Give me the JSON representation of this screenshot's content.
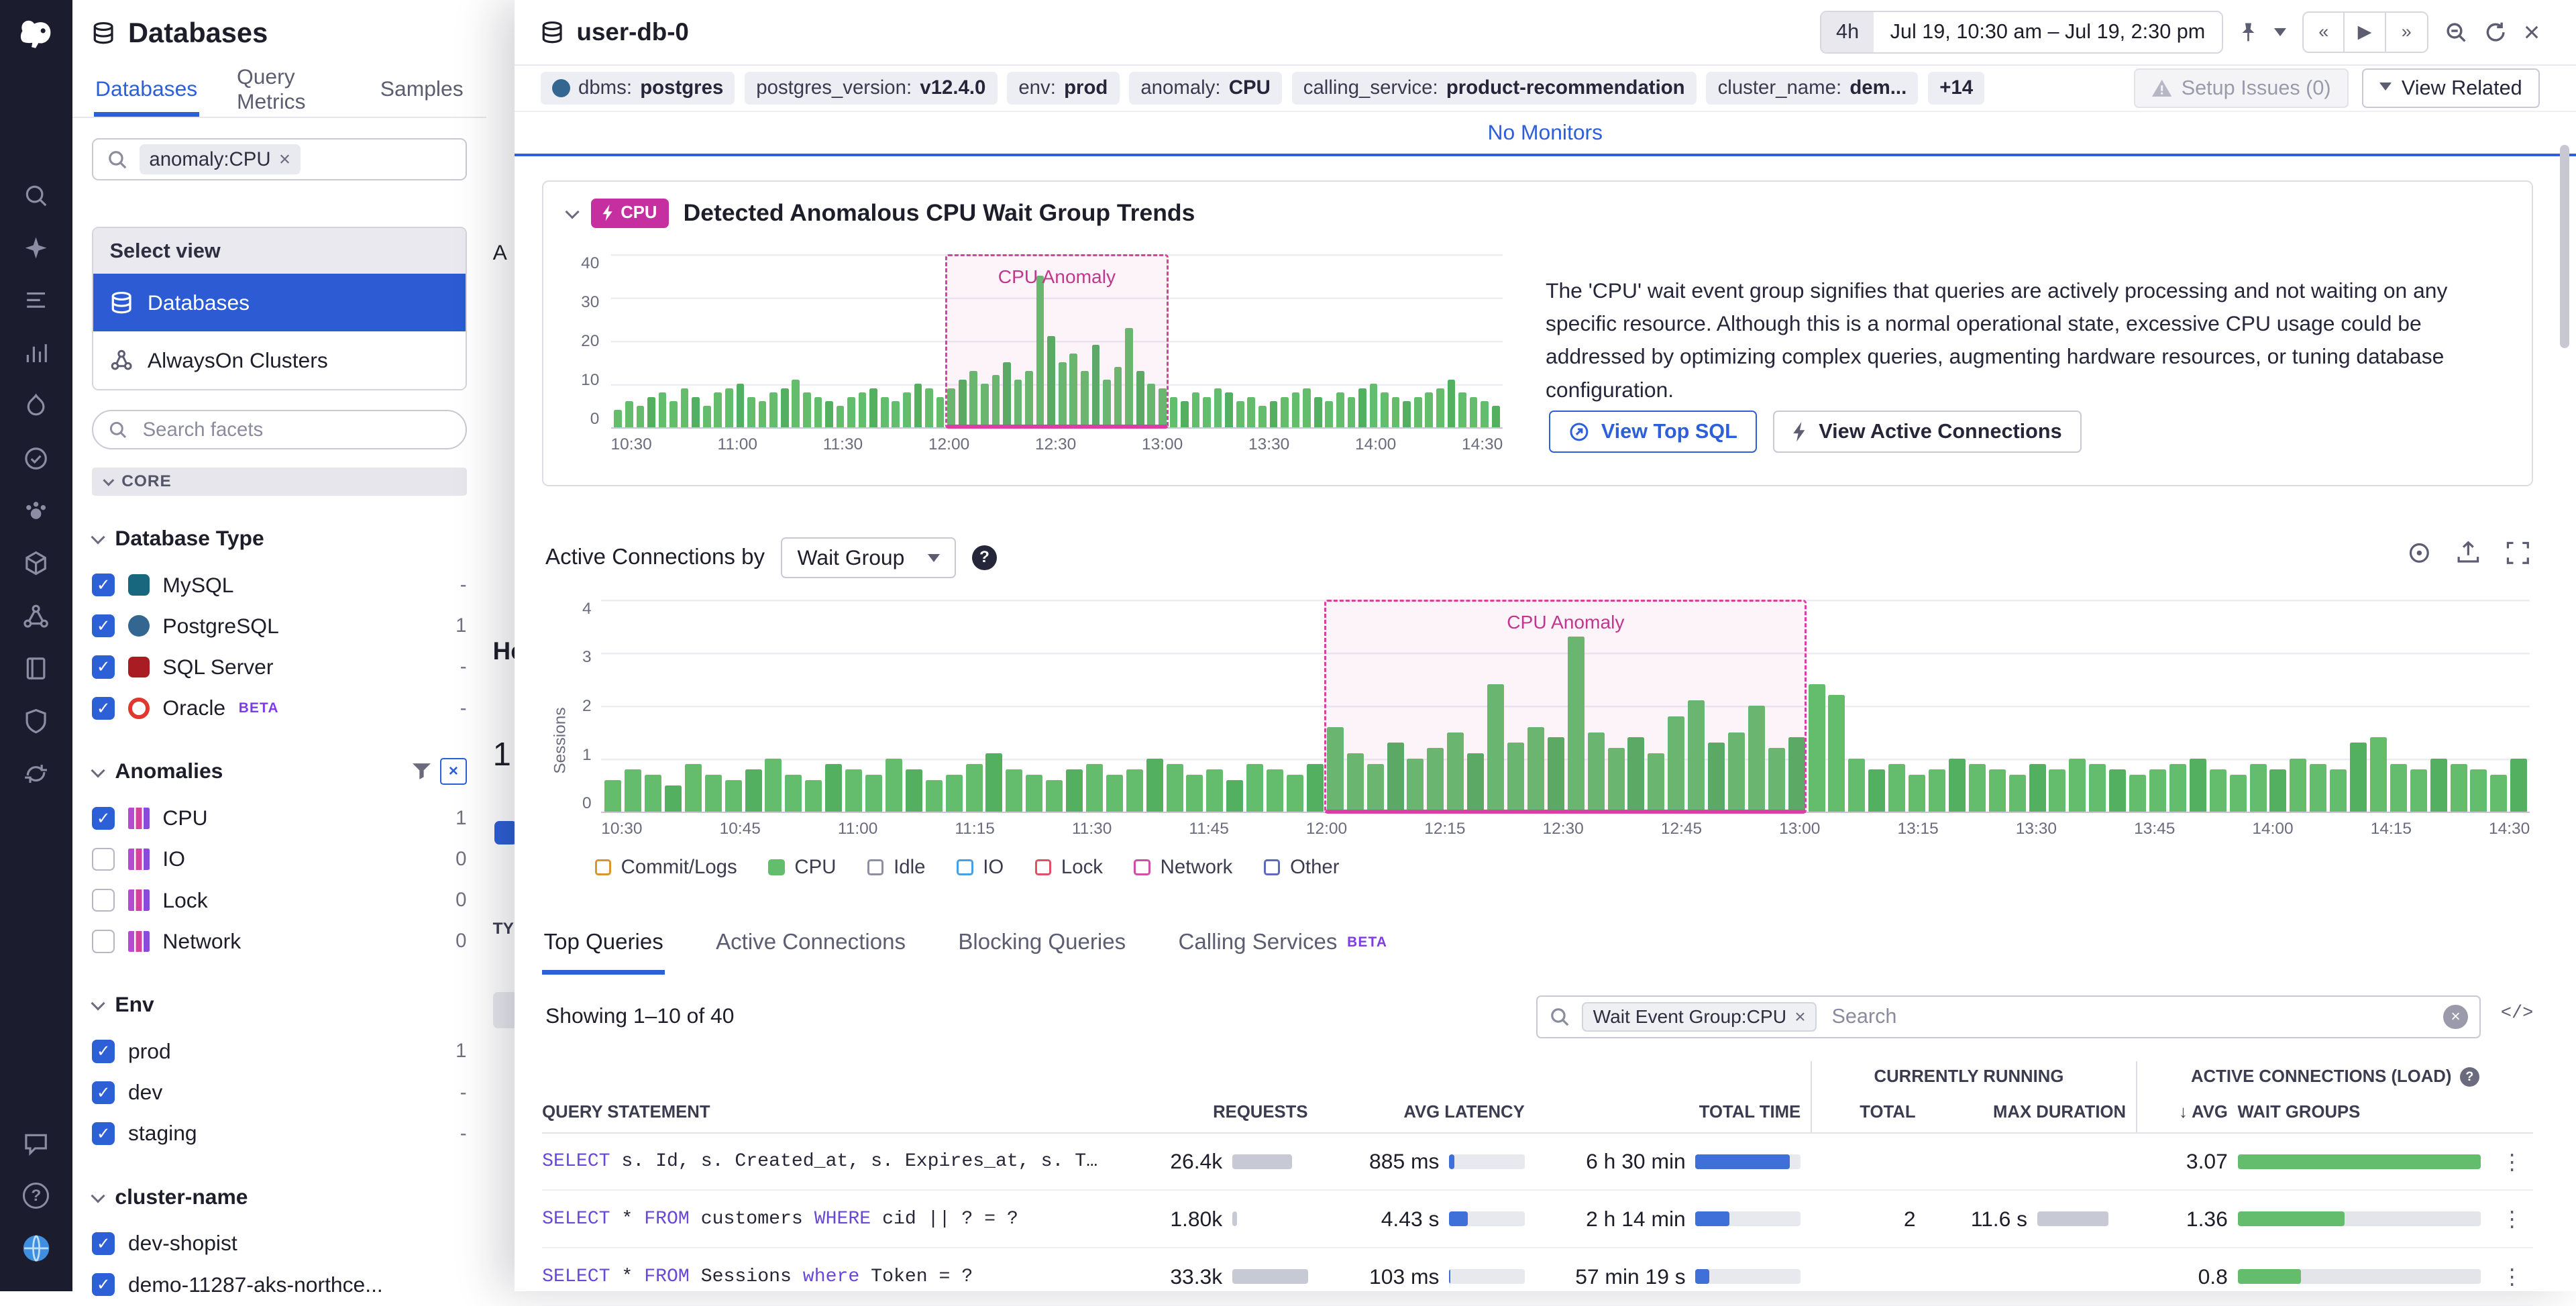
{
  "app": {
    "nav_icons": [
      "search",
      "bits-ai",
      "logs",
      "metrics",
      "apm",
      "monitors",
      "watchdog",
      "infrastructure",
      "network",
      "notebooks",
      "security",
      "integrations"
    ],
    "nav_bottom_icons": [
      "chat",
      "help",
      "region"
    ]
  },
  "left_panel": {
    "title": "Databases",
    "tabs": [
      {
        "label": "Databases",
        "active": true
      },
      {
        "label": "Query Metrics",
        "active": false
      },
      {
        "label": "Samples",
        "active": false
      }
    ],
    "search_chip": "anomaly:CPU",
    "select_view": {
      "header": "Select view",
      "items": [
        {
          "label": "Databases",
          "selected": true
        },
        {
          "label": "AlwaysOn Clusters",
          "selected": false
        }
      ]
    },
    "facet_search_placeholder": "Search facets",
    "core_label": "CORE",
    "facet_groups": [
      {
        "title": "Database Type",
        "filter": false,
        "items": [
          {
            "label": "MySQL",
            "icon": "mysql",
            "checked": true,
            "count": "-"
          },
          {
            "label": "PostgreSQL",
            "icon": "postgresql",
            "checked": true,
            "count": "1"
          },
          {
            "label": "SQL Server",
            "icon": "sqlserver",
            "checked": true,
            "count": "-"
          },
          {
            "label": "Oracle",
            "icon": "oracle",
            "checked": true,
            "count": "-",
            "beta": true
          }
        ]
      },
      {
        "title": "Anomalies",
        "filter": true,
        "items": [
          {
            "label": "CPU",
            "icon": "anomaly",
            "checked": true,
            "count": "1"
          },
          {
            "label": "IO",
            "icon": "anomaly",
            "checked": false,
            "count": "0"
          },
          {
            "label": "Lock",
            "icon": "anomaly",
            "checked": false,
            "count": "0"
          },
          {
            "label": "Network",
            "icon": "anomaly",
            "checked": false,
            "count": "0"
          }
        ]
      },
      {
        "title": "Env",
        "filter": false,
        "items": [
          {
            "label": "prod",
            "checked": true,
            "count": "1"
          },
          {
            "label": "dev",
            "checked": true,
            "count": "-"
          },
          {
            "label": "staging",
            "checked": true,
            "count": "-"
          }
        ]
      },
      {
        "title": "cluster-name",
        "filter": false,
        "items": [
          {
            "label": "dev-shopist",
            "checked": true,
            "count": ""
          },
          {
            "label": "demo-11287-aks-northce...",
            "checked": true,
            "count": ""
          }
        ]
      }
    ]
  },
  "background_fragments": {
    "top": "A",
    "heading": "He",
    "count": "1",
    "column": "TY"
  },
  "panel": {
    "title": "user-db-0",
    "time": {
      "range_chip": "4h",
      "range_text": "Jul 19, 10:30 am – Jul 19, 2:30 pm"
    },
    "tags": [
      {
        "label": "dbms",
        "value": "postgres",
        "icon": "postgres"
      },
      {
        "label": "postgres_version",
        "value": "v12.4.0"
      },
      {
        "label": "env",
        "value": "prod"
      },
      {
        "label": "anomaly",
        "value": "CPU"
      },
      {
        "label": "calling_service",
        "value": "product-recommendation"
      },
      {
        "label": "cluster_name",
        "value": "dem..."
      }
    ],
    "tags_more": "+14",
    "setup_issues_label": "Setup Issues (0)",
    "view_related_label": "View Related",
    "no_monitors_label": "No Monitors",
    "anomaly_card": {
      "badge": "CPU",
      "title": "Detected Anomalous CPU Wait Group Trends",
      "description": "The 'CPU' wait event group signifies that queries are actively processing and not waiting on any specific resource. Although this is a normal operational state, excessive CPU usage could be addressed by optimizing complex queries, augmenting hardware resources, or tuning database configuration.",
      "buttons": [
        {
          "label": "View Top SQL",
          "primary": true
        },
        {
          "label": "View Active Connections",
          "primary": false
        }
      ]
    },
    "active_connections": {
      "label": "Active Connections by",
      "dropdown_value": "Wait Group",
      "legend": [
        {
          "label": "Commit/Logs",
          "color": "#d9952f",
          "filled": false
        },
        {
          "label": "CPU",
          "color": "#63bd6c",
          "filled": true
        },
        {
          "label": "Idle",
          "color": "#8f8fa3",
          "filled": false
        },
        {
          "label": "IO",
          "color": "#4a9fe0",
          "filled": false
        },
        {
          "label": "Lock",
          "color": "#de5066",
          "filled": false
        },
        {
          "label": "Network",
          "color": "#cf4fa6",
          "filled": false
        },
        {
          "label": "Other",
          "color": "#5b6abf",
          "filled": false
        }
      ]
    },
    "tabs": [
      {
        "label": "Top Queries",
        "active": true
      },
      {
        "label": "Active Connections",
        "active": false
      },
      {
        "label": "Blocking Queries",
        "active": false
      },
      {
        "label": "Calling Services",
        "active": false,
        "beta": true
      }
    ],
    "table": {
      "showing": "Showing 1–10 of 40",
      "search_chip": "Wait Event Group:CPU",
      "search_placeholder": "Search",
      "group_headers": [
        {
          "label": "CURRENTLY RUNNING",
          "help": false
        },
        {
          "label": "ACTIVE CONNECTIONS (LOAD)",
          "help": true
        }
      ],
      "columns": [
        "QUERY STATEMENT",
        "REQUESTS",
        "AVG LATENCY",
        "TOTAL TIME",
        "TOTAL",
        "MAX DURATION",
        "↓ AVG",
        "WAIT GROUPS"
      ],
      "rows": [
        {
          "sql": [
            {
              "t": "kw",
              "v": "SELECT"
            },
            {
              "t": "id",
              "v": " s. Id, s. Created_at, s. Expires_at, s. Token, s…"
            }
          ],
          "requests": "26.4k",
          "requests_bar": 0.79,
          "avg_latency": "885 ms",
          "latency_bar": 0.07,
          "total_time": "6 h 30 min",
          "total_time_bar": 0.9,
          "running_total": "",
          "max_duration": "",
          "max_duration_bar": 0,
          "avg": "3.07",
          "load_bar": 1.0
        },
        {
          "sql": [
            {
              "t": "kw",
              "v": "SELECT"
            },
            {
              "t": "id",
              "v": " * "
            },
            {
              "t": "kw",
              "v": "FROM"
            },
            {
              "t": "id",
              "v": " customers "
            },
            {
              "t": "kw",
              "v": "WHERE"
            },
            {
              "t": "id",
              "v": " cid || ? = ?"
            }
          ],
          "requests": "1.80k",
          "requests_bar": 0.06,
          "avg_latency": "4.43 s",
          "latency_bar": 0.25,
          "total_time": "2 h 14 min",
          "total_time_bar": 0.32,
          "running_total": "2",
          "max_duration": "11.6 s",
          "max_duration_bar": 0.8,
          "avg": "1.36",
          "load_bar": 0.44
        },
        {
          "sql": [
            {
              "t": "kw",
              "v": "SELECT"
            },
            {
              "t": "id",
              "v": " * "
            },
            {
              "t": "kw",
              "v": "FROM"
            },
            {
              "t": "id",
              "v": " Sessions "
            },
            {
              "t": "kw",
              "v": "where"
            },
            {
              "t": "id",
              "v": " Token = ?"
            }
          ],
          "requests": "33.3k",
          "requests_bar": 1.0,
          "avg_latency": "103 ms",
          "latency_bar": 0.02,
          "total_time": "57 min 19 s",
          "total_time_bar": 0.13,
          "running_total": "",
          "max_duration": "",
          "max_duration_bar": 0,
          "avg": "0.8",
          "load_bar": 0.26
        }
      ]
    }
  },
  "chart_data": [
    {
      "type": "bar",
      "title": "Detected Anomalous CPU Wait Group Trends",
      "x_start": "10:30",
      "x_end": "14:30",
      "x_ticks": [
        "10:30",
        "11:00",
        "11:30",
        "12:00",
        "12:30",
        "13:00",
        "13:30",
        "14:00",
        "14:30"
      ],
      "y_ticks": [
        0,
        10,
        20,
        30,
        40
      ],
      "ylim": [
        0,
        40
      ],
      "grid": true,
      "legend_position": "none",
      "annotation": {
        "label": "CPU Anomaly",
        "x_from": "12:00",
        "x_to": "13:00"
      },
      "series": [
        {
          "name": "CPU",
          "color": "#63bd6c",
          "values": [
            4,
            6,
            5,
            7,
            8,
            6,
            9,
            7,
            5,
            8,
            9,
            10,
            7,
            6,
            8,
            9,
            11,
            8,
            7,
            6,
            5,
            7,
            8,
            9,
            7,
            6,
            8,
            10,
            9,
            7,
            9,
            11,
            13,
            10,
            12,
            15,
            11,
            13,
            35,
            21,
            15,
            17,
            13,
            19,
            11,
            14,
            23,
            13,
            10,
            9,
            7,
            6,
            8,
            7,
            9,
            8,
            6,
            7,
            5,
            6,
            7,
            8,
            9,
            7,
            6,
            8,
            7,
            9,
            10,
            8,
            7,
            6,
            7,
            8,
            9,
            11,
            8,
            7,
            6,
            5
          ]
        }
      ]
    },
    {
      "type": "bar",
      "title": "Active Connections by Wait Group",
      "ylabel": "Sessions",
      "x_start": "10:30",
      "x_end": "14:30",
      "x_ticks": [
        "10:30",
        "10:45",
        "11:00",
        "11:15",
        "11:30",
        "11:45",
        "12:00",
        "12:15",
        "12:30",
        "12:45",
        "13:00",
        "13:15",
        "13:30",
        "13:45",
        "14:00",
        "14:15",
        "14:30"
      ],
      "y_ticks": [
        0,
        1,
        2,
        3,
        4
      ],
      "ylim": [
        0,
        4
      ],
      "grid": true,
      "legend_position": "bottom",
      "annotation": {
        "label": "CPU Anomaly",
        "x_from": "12:00",
        "x_to": "13:00"
      },
      "series": [
        {
          "name": "CPU",
          "color": "#63bd6c",
          "values": [
            0.6,
            0.8,
            0.7,
            0.5,
            0.9,
            0.7,
            0.6,
            0.8,
            1.0,
            0.7,
            0.6,
            0.9,
            0.8,
            0.7,
            1.0,
            0.8,
            0.6,
            0.7,
            0.9,
            1.1,
            0.8,
            0.7,
            0.6,
            0.8,
            0.9,
            0.7,
            0.8,
            1.0,
            0.9,
            0.7,
            0.8,
            0.6,
            0.9,
            0.8,
            0.7,
            0.9,
            1.6,
            1.1,
            0.9,
            1.3,
            1.0,
            1.2,
            1.5,
            1.1,
            2.4,
            1.3,
            1.6,
            1.4,
            3.3,
            1.5,
            1.2,
            1.4,
            1.1,
            1.8,
            2.1,
            1.3,
            1.5,
            2.0,
            1.2,
            1.4,
            2.4,
            2.2,
            1.0,
            0.8,
            0.9,
            0.7,
            0.8,
            1.0,
            0.9,
            0.8,
            0.7,
            0.9,
            0.8,
            1.0,
            0.9,
            0.8,
            0.7,
            0.8,
            0.9,
            1.0,
            0.8,
            0.7,
            0.9,
            0.8,
            1.0,
            0.9,
            0.8,
            1.3,
            1.4,
            0.9,
            0.8,
            1.0,
            0.9,
            0.8,
            0.7,
            1.0
          ]
        }
      ]
    }
  ]
}
